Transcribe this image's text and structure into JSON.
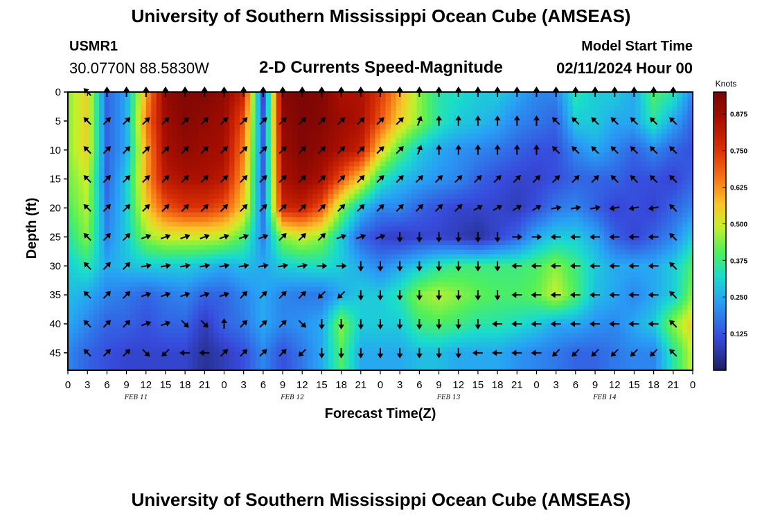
{
  "header": {
    "title": "University of Southern Mississippi Ocean Cube (AMSEAS)",
    "station_id": "USMR1",
    "coords": "30.0770N  88.5830W",
    "subtitle": "2-D Currents Speed-Magnitude",
    "model_start_label": "Model Start Time",
    "model_start_value": "02/11/2024 Hour 00"
  },
  "footer": {
    "title": "University of Southern Mississippi Ocean Cube (AMSEAS)"
  },
  "chart_data": {
    "type": "heatmap",
    "title": "2-D Currents Speed-Magnitude",
    "xlabel": "Forecast Time(Z)",
    "ylabel": "Depth (ft)",
    "x_hours_range": [
      0,
      96
    ],
    "y_depth_range": [
      0,
      48
    ],
    "y_ticks": [
      "0",
      "5",
      "10",
      "15",
      "20",
      "25",
      "30",
      "35",
      "40",
      "45"
    ],
    "x_ticks": [
      "0",
      "3",
      "6",
      "9",
      "12",
      "15",
      "18",
      "21",
      "0",
      "3",
      "6",
      "9",
      "12",
      "15",
      "18",
      "21",
      "0",
      "3",
      "6",
      "9",
      "12",
      "15",
      "18",
      "21",
      "0",
      "3",
      "6",
      "9",
      "12",
      "15",
      "18",
      "21",
      "0"
    ],
    "date_labels": [
      "FEB 11",
      "FEB 12",
      "FEB 13",
      "FEB 14"
    ],
    "colorbar": {
      "title": "Knots",
      "range": [
        0,
        0.95
      ],
      "ticks": [
        "0.125",
        "0.250",
        "0.375",
        "0.500",
        "0.625",
        "0.750",
        "0.875"
      ],
      "tick_values": [
        0.125,
        0.25,
        0.375,
        0.5,
        0.625,
        0.75,
        0.875
      ]
    },
    "vector_depths_ft": [
      0,
      5,
      10,
      15,
      20,
      25,
      30,
      35,
      40,
      45
    ],
    "vector_hours": [
      3,
      6,
      9,
      12,
      15,
      18,
      21,
      24,
      27,
      30,
      33,
      36,
      39,
      42,
      45,
      48,
      51,
      54,
      57,
      60,
      63,
      66,
      69,
      72,
      75,
      78,
      81,
      84,
      87,
      90,
      93
    ],
    "speed_grid_note": "approximate current speed (knots) sampled at depth rows 0,5,...,45 ft and hours 0..96 in 3h steps",
    "speed_rows": [
      [
        0.45,
        0.55,
        0.15,
        0.25,
        0.6,
        0.9,
        0.93,
        0.93,
        0.9,
        0.8,
        0.1,
        0.92,
        0.94,
        0.93,
        0.85,
        0.85,
        0.75,
        0.6,
        0.45,
        0.35,
        0.33,
        0.3,
        0.3,
        0.25,
        0.2,
        0.2,
        0.35,
        0.3,
        0.3,
        0.25,
        0.4,
        0.35,
        0.2
      ],
      [
        0.45,
        0.55,
        0.15,
        0.25,
        0.65,
        0.88,
        0.92,
        0.9,
        0.88,
        0.7,
        0.15,
        0.9,
        0.94,
        0.92,
        0.88,
        0.85,
        0.7,
        0.55,
        0.45,
        0.35,
        0.3,
        0.28,
        0.25,
        0.2,
        0.18,
        0.15,
        0.3,
        0.3,
        0.25,
        0.25,
        0.35,
        0.25,
        0.15
      ],
      [
        0.45,
        0.55,
        0.15,
        0.25,
        0.6,
        0.86,
        0.9,
        0.88,
        0.86,
        0.65,
        0.15,
        0.88,
        0.93,
        0.9,
        0.85,
        0.8,
        0.55,
        0.4,
        0.3,
        0.25,
        0.22,
        0.2,
        0.18,
        0.15,
        0.12,
        0.12,
        0.2,
        0.25,
        0.2,
        0.15,
        0.2,
        0.15,
        0.12
      ],
      [
        0.43,
        0.5,
        0.15,
        0.3,
        0.6,
        0.82,
        0.85,
        0.85,
        0.82,
        0.6,
        0.15,
        0.85,
        0.9,
        0.85,
        0.7,
        0.55,
        0.35,
        0.28,
        0.25,
        0.22,
        0.2,
        0.15,
        0.12,
        0.1,
        0.1,
        0.12,
        0.15,
        0.15,
        0.15,
        0.12,
        0.12,
        0.1,
        0.15
      ],
      [
        0.4,
        0.48,
        0.18,
        0.3,
        0.55,
        0.7,
        0.75,
        0.75,
        0.7,
        0.55,
        0.18,
        0.78,
        0.8,
        0.7,
        0.45,
        0.28,
        0.2,
        0.2,
        0.15,
        0.12,
        0.1,
        0.1,
        0.1,
        0.08,
        0.12,
        0.18,
        0.2,
        0.15,
        0.1,
        0.12,
        0.1,
        0.15,
        0.2
      ],
      [
        0.35,
        0.45,
        0.2,
        0.3,
        0.45,
        0.5,
        0.5,
        0.5,
        0.48,
        0.4,
        0.2,
        0.45,
        0.5,
        0.45,
        0.3,
        0.15,
        0.1,
        0.08,
        0.1,
        0.1,
        0.08,
        0.05,
        0.1,
        0.15,
        0.25,
        0.3,
        0.3,
        0.25,
        0.15,
        0.1,
        0.15,
        0.2,
        0.3
      ],
      [
        0.3,
        0.35,
        0.25,
        0.28,
        0.3,
        0.3,
        0.3,
        0.28,
        0.25,
        0.28,
        0.25,
        0.3,
        0.32,
        0.33,
        0.3,
        0.25,
        0.2,
        0.25,
        0.3,
        0.35,
        0.38,
        0.38,
        0.38,
        0.38,
        0.4,
        0.45,
        0.38,
        0.3,
        0.25,
        0.25,
        0.25,
        0.3,
        0.4
      ],
      [
        0.28,
        0.25,
        0.2,
        0.18,
        0.15,
        0.18,
        0.2,
        0.15,
        0.15,
        0.2,
        0.25,
        0.2,
        0.18,
        0.18,
        0.25,
        0.3,
        0.3,
        0.35,
        0.45,
        0.48,
        0.45,
        0.42,
        0.4,
        0.4,
        0.42,
        0.5,
        0.4,
        0.28,
        0.25,
        0.2,
        0.25,
        0.3,
        0.45
      ],
      [
        0.25,
        0.2,
        0.15,
        0.15,
        0.12,
        0.15,
        0.15,
        0.08,
        0.15,
        0.18,
        0.25,
        0.2,
        0.22,
        0.25,
        0.45,
        0.3,
        0.3,
        0.3,
        0.38,
        0.4,
        0.38,
        0.35,
        0.35,
        0.33,
        0.3,
        0.25,
        0.25,
        0.22,
        0.2,
        0.25,
        0.3,
        0.45,
        0.55
      ],
      [
        0.2,
        0.15,
        0.12,
        0.1,
        0.1,
        0.1,
        0.1,
        0.05,
        0.08,
        0.12,
        0.2,
        0.12,
        0.18,
        0.25,
        0.4,
        0.25,
        0.25,
        0.25,
        0.28,
        0.28,
        0.25,
        0.25,
        0.25,
        0.22,
        0.2,
        0.18,
        0.15,
        0.15,
        0.18,
        0.2,
        0.2,
        0.35,
        0.5
      ]
    ],
    "direction_rows_deg": [
      [
        135,
        180,
        180,
        180,
        180,
        180,
        180,
        180,
        180,
        180,
        180,
        180,
        180,
        180,
        180,
        180,
        180,
        180,
        180,
        180,
        180,
        180,
        180,
        180,
        180,
        180,
        180,
        180,
        180,
        180,
        180
      ],
      [
        135,
        225,
        225,
        225,
        225,
        225,
        225,
        225,
        225,
        225,
        225,
        225,
        225,
        225,
        225,
        225,
        225,
        200,
        180,
        180,
        180,
        180,
        180,
        180,
        135,
        135,
        135,
        135,
        135,
        135,
        135
      ],
      [
        135,
        225,
        225,
        225,
        225,
        225,
        225,
        225,
        225,
        225,
        225,
        225,
        225,
        225,
        225,
        225,
        225,
        200,
        180,
        180,
        180,
        180,
        180,
        180,
        135,
        135,
        135,
        135,
        135,
        135,
        135
      ],
      [
        135,
        225,
        225,
        225,
        225,
        225,
        225,
        225,
        225,
        225,
        225,
        225,
        225,
        225,
        225,
        225,
        225,
        225,
        225,
        225,
        225,
        225,
        225,
        225,
        225,
        225,
        225,
        135,
        135,
        135,
        135
      ],
      [
        135,
        225,
        225,
        225,
        225,
        225,
        225,
        225,
        225,
        225,
        225,
        225,
        225,
        225,
        225,
        225,
        225,
        225,
        225,
        225,
        240,
        240,
        240,
        240,
        260,
        260,
        260,
        80,
        80,
        80,
        135
      ],
      [
        135,
        225,
        225,
        250,
        250,
        250,
        250,
        250,
        250,
        250,
        225,
        225,
        225,
        250,
        250,
        250,
        0,
        0,
        0,
        0,
        0,
        0,
        270,
        270,
        90,
        90,
        90,
        90,
        90,
        90,
        135
      ],
      [
        135,
        225,
        225,
        260,
        260,
        260,
        260,
        260,
        260,
        260,
        260,
        260,
        270,
        270,
        0,
        0,
        0,
        0,
        0,
        0,
        0,
        0,
        90,
        90,
        90,
        90,
        90,
        90,
        90,
        90,
        135
      ],
      [
        135,
        225,
        225,
        250,
        250,
        250,
        250,
        250,
        225,
        225,
        225,
        225,
        45,
        45,
        0,
        0,
        0,
        0,
        0,
        0,
        0,
        0,
        90,
        90,
        90,
        90,
        90,
        90,
        90,
        90,
        135
      ],
      [
        135,
        225,
        225,
        250,
        250,
        315,
        315,
        180,
        225,
        225,
        225,
        315,
        0,
        0,
        0,
        0,
        0,
        0,
        0,
        0,
        0,
        90,
        90,
        90,
        90,
        90,
        90,
        90,
        90,
        90,
        135
      ],
      [
        135,
        225,
        225,
        315,
        45,
        90,
        90,
        225,
        225,
        225,
        225,
        45,
        0,
        0,
        0,
        0,
        0,
        0,
        0,
        0,
        90,
        90,
        90,
        90,
        45,
        45,
        45,
        45,
        45,
        45,
        135
      ]
    ]
  }
}
